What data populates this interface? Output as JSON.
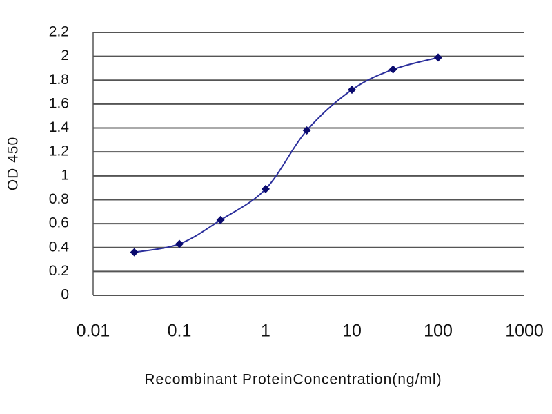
{
  "chart_data": {
    "type": "line",
    "x_label": "Recombinant ProteinConcentration(ng/ml)",
    "y_label": "OD 450",
    "x": [
      0.03,
      0.1,
      0.3,
      1,
      3,
      10,
      30,
      100
    ],
    "values": [
      0.36,
      0.43,
      0.63,
      0.89,
      1.38,
      1.72,
      1.89,
      1.99
    ],
    "color": "#2b2f9c",
    "marker_color": "#0a0a6e",
    "xscale": "log",
    "xlim": [
      0.01,
      1000
    ],
    "xticks": [
      0.01,
      0.1,
      1,
      10,
      100,
      1000
    ],
    "ylim": [
      0,
      2.2
    ],
    "yticks": [
      0,
      0.2,
      0.4,
      0.6,
      0.8,
      1,
      1.2,
      1.4,
      1.6,
      1.8,
      2,
      2.2
    ],
    "grid": true
  }
}
